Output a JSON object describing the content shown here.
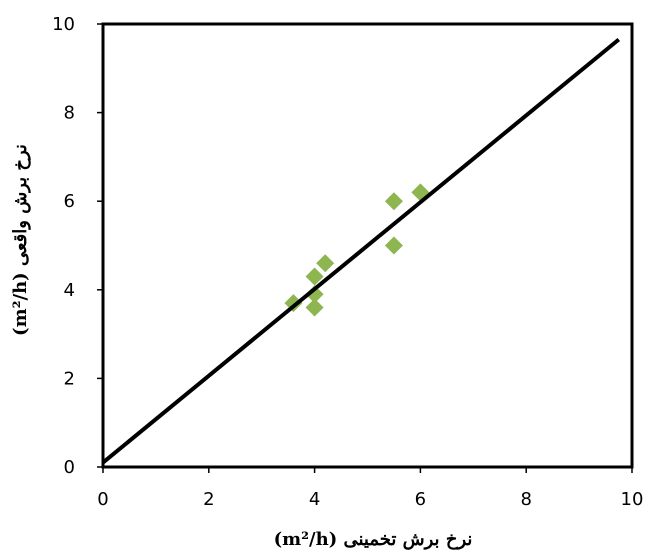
{
  "chart_data": {
    "type": "scatter",
    "title": "",
    "xlabel": "نرخ برش تخمینی (m²/h)",
    "ylabel": "نرخ برش واقعی (m²/h)",
    "xlim": [
      0,
      10
    ],
    "ylim": [
      0,
      10
    ],
    "x_ticks": [
      "0",
      "2",
      "4",
      "6",
      "8",
      "10"
    ],
    "y_ticks": [
      "0",
      "2",
      "4",
      "6",
      "8",
      "10"
    ],
    "grid": false,
    "legend": "none",
    "series": [
      {
        "marker": "diamond",
        "color": "#8DB650",
        "points": [
          {
            "x": 3.6,
            "y": 3.7
          },
          {
            "x": 4.0,
            "y": 3.6
          },
          {
            "x": 4.0,
            "y": 3.9
          },
          {
            "x": 4.0,
            "y": 4.3
          },
          {
            "x": 4.2,
            "y": 4.6
          },
          {
            "x": 5.5,
            "y": 5.0
          },
          {
            "x": 5.5,
            "y": 6.0
          },
          {
            "x": 6.0,
            "y": 6.2
          }
        ]
      }
    ],
    "fit_line": {
      "color": "#000000",
      "from": {
        "x": 0,
        "y": 0.1
      },
      "to": {
        "x": 9.75,
        "y": 9.65
      }
    }
  }
}
